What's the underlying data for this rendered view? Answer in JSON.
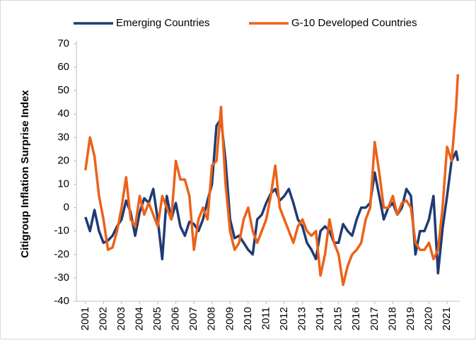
{
  "chart_data": {
    "type": "line",
    "y_label": "Citigroup Inflation Surprise Index",
    "x": [
      2001.0,
      2001.25,
      2001.5,
      2001.75,
      2002.0,
      2002.25,
      2002.5,
      2002.75,
      2003.0,
      2003.25,
      2003.5,
      2003.75,
      2004.0,
      2004.25,
      2004.5,
      2004.75,
      2005.0,
      2005.25,
      2005.5,
      2005.75,
      2006.0,
      2006.25,
      2006.5,
      2006.75,
      2007.0,
      2007.25,
      2007.5,
      2007.75,
      2008.0,
      2008.25,
      2008.5,
      2008.75,
      2009.0,
      2009.25,
      2009.5,
      2009.75,
      2010.0,
      2010.25,
      2010.5,
      2010.75,
      2011.0,
      2011.25,
      2011.5,
      2011.75,
      2012.0,
      2012.25,
      2012.5,
      2012.75,
      2013.0,
      2013.25,
      2013.5,
      2013.75,
      2014.0,
      2014.25,
      2014.5,
      2014.75,
      2015.0,
      2015.25,
      2015.5,
      2015.75,
      2016.0,
      2016.25,
      2016.5,
      2016.75,
      2017.0,
      2017.25,
      2017.5,
      2017.75,
      2018.0,
      2018.25,
      2018.5,
      2018.75,
      2019.0,
      2019.25,
      2019.5,
      2019.75,
      2020.0,
      2020.25,
      2020.5,
      2020.75,
      2021.0,
      2021.25,
      2021.5,
      2021.6
    ],
    "series": [
      {
        "name": "Emerging Countries",
        "color": "#1f3b73",
        "values": [
          -4,
          -10,
          -1,
          -10,
          -15,
          -14,
          -12,
          -8,
          -5,
          3,
          -2,
          -12,
          -2,
          4,
          2,
          8,
          -5,
          -22,
          5,
          -5,
          2,
          -8,
          -12,
          -6,
          -7,
          -10,
          -5,
          3,
          10,
          35,
          38,
          20,
          -5,
          -13,
          -12,
          -15,
          -18,
          -20,
          -5,
          -3,
          2,
          6,
          8,
          3,
          5,
          8,
          2,
          -5,
          -8,
          -15,
          -18,
          -22,
          -10,
          -8,
          -10,
          -15,
          -15,
          -7,
          -10,
          -12,
          -5,
          0,
          0,
          2,
          15,
          5,
          -5,
          0,
          2,
          -3,
          0,
          8,
          5,
          -20,
          -10,
          -10,
          -5,
          5,
          -28,
          -9,
          5,
          20,
          24,
          20
        ]
      },
      {
        "name": "G-10 Developed Countries",
        "color": "#ec6219",
        "values": [
          16,
          30,
          22,
          5,
          -5,
          -18,
          -17,
          -10,
          0,
          13,
          -5,
          -8,
          5,
          -3,
          2,
          -3,
          -8,
          5,
          0,
          -5,
          20,
          12,
          12,
          5,
          -18,
          -5,
          0,
          -5,
          18,
          20,
          43,
          10,
          -10,
          -18,
          -15,
          -5,
          0,
          -10,
          -15,
          -10,
          -5,
          5,
          18,
          0,
          -5,
          -10,
          -15,
          -8,
          -5,
          -10,
          -12,
          -10,
          -29,
          -20,
          -5,
          -15,
          -20,
          -33,
          -25,
          -20,
          -18,
          -15,
          -5,
          0,
          28,
          15,
          0,
          0,
          5,
          -3,
          2,
          3,
          0,
          -15,
          -18,
          -18,
          -15,
          -22,
          -18,
          0,
          26,
          20,
          43,
          57
        ]
      }
    ],
    "xlim": [
      2000.5,
      2021.7
    ],
    "xticks": [
      2001,
      2002,
      2003,
      2004,
      2005,
      2006,
      2007,
      2008,
      2009,
      2010,
      2011,
      2012,
      2013,
      2014,
      2015,
      2016,
      2017,
      2018,
      2019,
      2020,
      2021
    ],
    "ylim": [
      -40,
      70
    ],
    "yticks": [
      -40,
      -30,
      -20,
      -10,
      0,
      10,
      20,
      30,
      40,
      50,
      60,
      70
    ],
    "grid": false,
    "legend": "top"
  }
}
